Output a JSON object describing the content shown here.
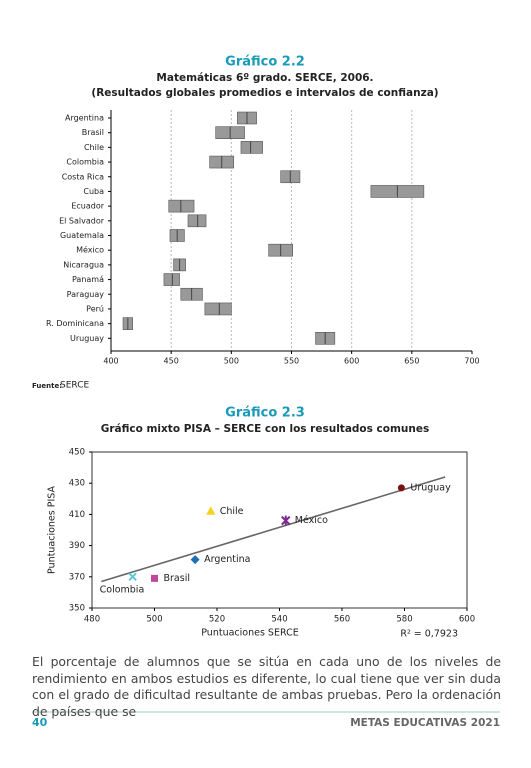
{
  "chart_data": [
    {
      "type": "interval",
      "label": "Gráfico 2.2",
      "title": "Matemáticas 6º grado. SERCE, 2006.",
      "subtitle": "(Resultados globales promedios e intervalos de confianza)",
      "categories": [
        "Argentina",
        "Brasil",
        "Chile",
        "Colombia",
        "Costa Rica",
        "Cuba",
        "Ecuador",
        "El Salvador",
        "Guatemala",
        "México",
        "Nicaragua",
        "Panamá",
        "Paraguay",
        "Perú",
        "R. Dominicana",
        "Uruguay"
      ],
      "low": [
        505,
        487,
        508,
        482,
        541,
        616,
        448,
        464,
        449,
        531,
        452,
        444,
        458,
        478,
        410,
        570
      ],
      "mean": [
        513,
        499,
        516,
        492,
        549,
        638,
        458,
        472,
        455,
        541,
        457,
        451,
        467,
        490,
        414,
        578
      ],
      "high": [
        521,
        511,
        526,
        502,
        557,
        660,
        469,
        479,
        461,
        551,
        462,
        457,
        476,
        500,
        418,
        586
      ],
      "color": "#999999",
      "xlim": [
        400,
        700
      ],
      "xticks": [
        400,
        450,
        500,
        550,
        600,
        650,
        700
      ],
      "grid": true,
      "source_label": "Fuente:",
      "source": "SERCE"
    },
    {
      "type": "scatter",
      "label": "Gráfico 2.3",
      "title": "Gráfico mixto PISA – SERCE con los resultados comunes",
      "xlabel": "Puntuaciones SERCE",
      "ylabel": "Puntuaciones PISA",
      "points": [
        {
          "name": "Chile",
          "x": 518,
          "y": 412,
          "color": "#f2d21b",
          "marker": "triangle"
        },
        {
          "name": "México",
          "x": 542,
          "y": 406,
          "color": "#7b2a8c",
          "marker": "star"
        },
        {
          "name": "Uruguay",
          "x": 579,
          "y": 427,
          "color": "#7a1010",
          "marker": "circle"
        },
        {
          "name": "Argentina",
          "x": 513,
          "y": 381,
          "color": "#1f6fb5",
          "marker": "diamond"
        },
        {
          "name": "Brasil",
          "x": 500,
          "y": 369,
          "color": "#c0479c",
          "marker": "square"
        },
        {
          "name": "Colombia",
          "x": 493,
          "y": 370,
          "color": "#5cc7d6",
          "marker": "x"
        }
      ],
      "trendline": {
        "x": [
          483,
          593
        ],
        "y": [
          367,
          434
        ],
        "color": "#666666"
      },
      "r2": "R² = 0,7923",
      "xlim": [
        480,
        600
      ],
      "xticks": [
        480,
        500,
        520,
        540,
        560,
        580,
        600
      ],
      "ylim": [
        350,
        450
      ],
      "yticks": [
        350,
        370,
        390,
        410,
        430,
        450
      ]
    }
  ],
  "paragraph": "El porcentaje de alumnos que se sitúa en cada uno de los niveles de rendimiento en ambos estudios es diferente, lo cual tiene que ver sin duda con el grado de dificultad resultante de ambas pruebas. Pero la ordenación de países que se",
  "footer": {
    "page": "40",
    "publication": "METAS EDUCATIVAS 2021"
  }
}
